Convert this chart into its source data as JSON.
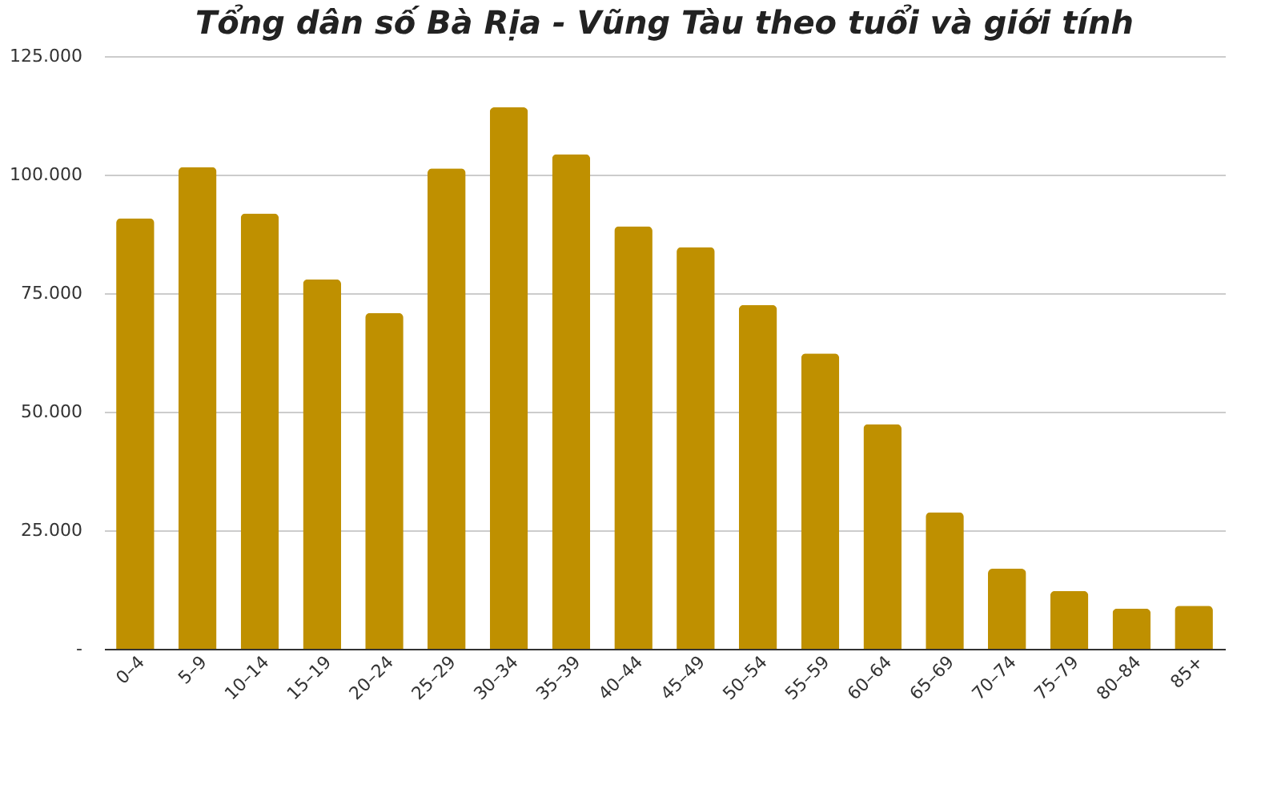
{
  "chart_data": {
    "type": "bar",
    "title": "Tổng dân số Bà Rịa - Vũng Tàu theo tuổi và giới tính",
    "categories": [
      "0–4",
      "5–9",
      "10–14",
      "15–19",
      "20–24",
      "25–29",
      "30–34",
      "35–39",
      "40–44",
      "45–49",
      "50–54",
      "55–59",
      "60–64",
      "65–69",
      "70–74",
      "75–79",
      "80–84",
      "85+"
    ],
    "values": [
      90800,
      101600,
      91800,
      77900,
      70800,
      101300,
      114200,
      104300,
      89100,
      84700,
      72500,
      62300,
      47400,
      28800,
      16900,
      12200,
      8500,
      9100
    ],
    "color": "#bf9000",
    "ylim": [
      0,
      125000
    ],
    "yticks": [
      {
        "value": 0,
        "label": "-"
      },
      {
        "value": 25000,
        "label": "25.000"
      },
      {
        "value": 50000,
        "label": "50.000"
      },
      {
        "value": 75000,
        "label": "75.000"
      },
      {
        "value": 100000,
        "label": "100.000"
      },
      {
        "value": 125000,
        "label": "125.000"
      }
    ],
    "grid": "y"
  }
}
